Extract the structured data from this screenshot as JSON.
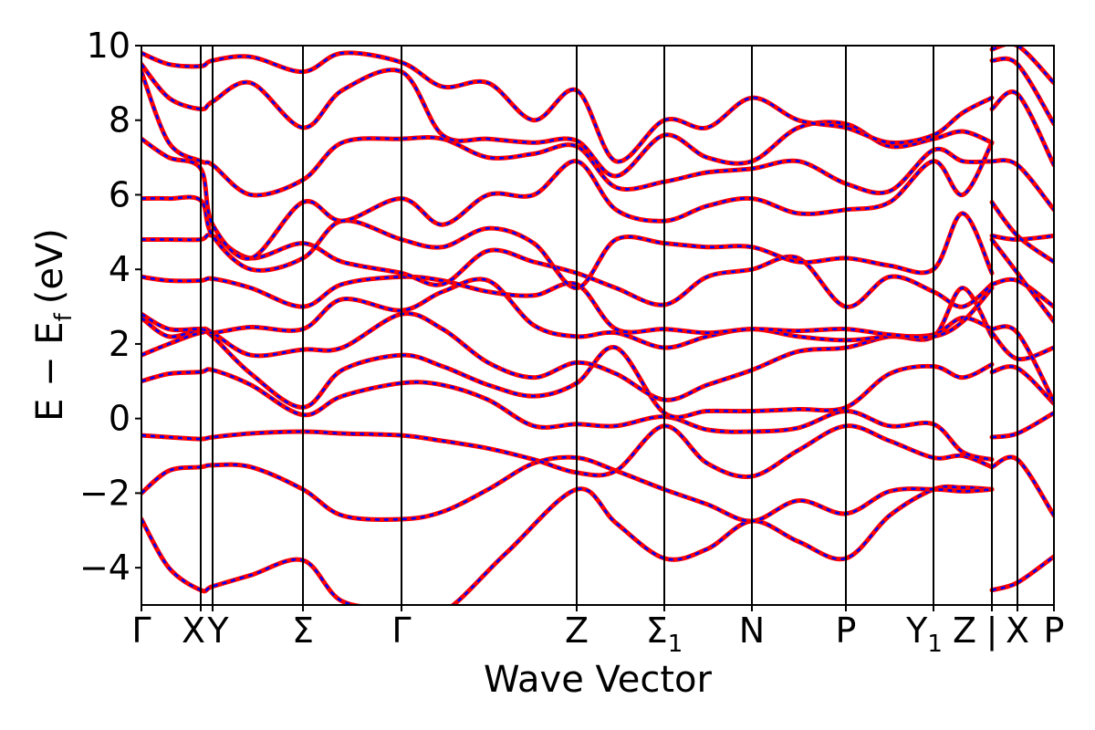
{
  "chart_data": {
    "type": "line",
    "xlabel": "Wave Vector",
    "ylabel": "E − E_f (eV)",
    "ylabel_parts": {
      "main": "E − E",
      "sub": "f",
      "unit": "(eV)"
    },
    "ylim": [
      -5,
      10
    ],
    "yticks": [
      -4,
      -2,
      0,
      2,
      4,
      6,
      8,
      10
    ],
    "xlim": [
      0,
      100
    ],
    "grid": false,
    "line_styles": {
      "red": "#ff0000",
      "blue_dashed": "#0000ff"
    },
    "kpoints": [
      {
        "label": "Γ",
        "pos": 0
      },
      {
        "label": "X",
        "pos": 6.5
      },
      {
        "label": "Y",
        "pos": 7.8
      },
      {
        "label": "Σ",
        "pos": 17.7
      },
      {
        "label": "Γ",
        "pos": 28.5
      },
      {
        "label": "Z",
        "pos": 47.7
      },
      {
        "label": "Σ",
        "sub": "1",
        "pos": 57.3
      },
      {
        "label": "N",
        "pos": 66.9
      },
      {
        "label": "P",
        "pos": 77.2
      },
      {
        "label": "Y",
        "sub": "1",
        "pos": 86.8
      },
      {
        "label": "Z",
        "pos": 93.2
      },
      {
        "label": "|",
        "pos": 93.2
      },
      {
        "label": "X",
        "pos": 96.0
      },
      {
        "label": "P",
        "pos": 100
      }
    ],
    "series": [
      {
        "x": [
          0,
          3,
          6.5,
          7.8,
          12,
          17.7,
          22,
          28.5,
          33,
          40,
          47.7,
          52,
          57.3,
          62,
          66.9,
          72,
          77.2,
          82,
          86.8,
          90,
          93.2
        ],
        "y": [
          -2.7,
          -4.0,
          -4.6,
          -4.5,
          -4.2,
          -3.8,
          -4.9,
          -5.1,
          -5.2,
          -3.6,
          -1.9,
          -2.8,
          -3.75,
          -3.5,
          -2.75,
          -3.3,
          -3.75,
          -2.6,
          -1.9,
          -1.85,
          -1.9
        ]
      },
      {
        "x": [
          0,
          3,
          6.5,
          7.8,
          12,
          17.7,
          22,
          28.5,
          33,
          38,
          43,
          47.7,
          52,
          57.3,
          62,
          66.9,
          72,
          77.2,
          82,
          86.8,
          90,
          93.2
        ],
        "y": [
          -2.0,
          -1.4,
          -1.3,
          -1.25,
          -1.3,
          -1.9,
          -2.6,
          -2.7,
          -2.5,
          -1.9,
          -1.2,
          -1.05,
          -1.4,
          -1.9,
          -2.3,
          -2.75,
          -2.2,
          -2.55,
          -1.95,
          -1.9,
          -1.95,
          -1.9
        ]
      },
      {
        "x": [
          0,
          3,
          6.5,
          7.8,
          12,
          17.7,
          22,
          28.5,
          33,
          38,
          43,
          47.7,
          52,
          57.3,
          62,
          66.9,
          72,
          77.2,
          82,
          86.8,
          90,
          93.2
        ],
        "y": [
          -0.45,
          -0.5,
          -0.55,
          -0.5,
          -0.4,
          -0.35,
          -0.4,
          -0.45,
          -0.6,
          -0.8,
          -1.1,
          -1.45,
          -1.4,
          -0.2,
          -1.2,
          -1.55,
          -0.85,
          -0.2,
          -0.6,
          -1.05,
          -1.0,
          -1.3
        ]
      },
      {
        "x": [
          0,
          3,
          6.5,
          7.8,
          12,
          17.7,
          22,
          28.5,
          33,
          38,
          43,
          47.7,
          52,
          57.3,
          62,
          66.9,
          72,
          77.2,
          82,
          86.8,
          90,
          93.2
        ],
        "y": [
          1.0,
          1.2,
          1.25,
          1.3,
          0.9,
          0.1,
          0.6,
          0.95,
          0.9,
          0.5,
          -0.2,
          -0.15,
          -0.2,
          0.05,
          -0.3,
          -0.35,
          -0.25,
          0.2,
          -0.2,
          -0.15,
          -0.9,
          -1.1
        ]
      },
      {
        "x": [
          0,
          3,
          6.5,
          7.8,
          12,
          17.7,
          22,
          28.5,
          33,
          38,
          43,
          47.7,
          52,
          57.3,
          62,
          66.9,
          72,
          77.2,
          82,
          86.8,
          90,
          93.2
        ],
        "y": [
          1.7,
          2.0,
          2.3,
          2.2,
          1.2,
          0.3,
          1.3,
          1.7,
          1.4,
          0.9,
          0.6,
          0.95,
          1.9,
          0.15,
          0.2,
          0.2,
          0.25,
          0.3,
          1.2,
          1.4,
          1.1,
          1.45
        ]
      },
      {
        "x": [
          0,
          3,
          6.5,
          7.8,
          12,
          17.7,
          22,
          28.5,
          33,
          38,
          43,
          47.7,
          52,
          57.3,
          62,
          66.9,
          72,
          77.2,
          82,
          86.8,
          90,
          93.2
        ],
        "y": [
          2.7,
          2.2,
          2.4,
          2.3,
          1.7,
          1.85,
          1.9,
          2.8,
          2.4,
          1.5,
          1.1,
          1.5,
          1.2,
          0.5,
          0.9,
          1.3,
          1.8,
          1.9,
          2.2,
          2.2,
          3.5,
          2.2
        ]
      },
      {
        "x": [
          0,
          3,
          6.5,
          7.8,
          12,
          17.7,
          22,
          28.5,
          33,
          38,
          43,
          47.7,
          52,
          57.3,
          62,
          66.9,
          72,
          77.2,
          82,
          86.8,
          90,
          93.2
        ],
        "y": [
          2.8,
          2.4,
          2.4,
          2.3,
          2.45,
          2.4,
          3.2,
          2.9,
          3.4,
          3.7,
          2.5,
          2.2,
          2.3,
          1.9,
          2.2,
          2.4,
          2.2,
          2.1,
          2.2,
          2.25,
          2.7,
          2.4
        ]
      },
      {
        "x": [
          0,
          3,
          6.5,
          7.8,
          12,
          17.7,
          22,
          28.5,
          33,
          38,
          43,
          47.7,
          52,
          57.3,
          62,
          66.9,
          72,
          77.2,
          82,
          86.8,
          90,
          93.2
        ],
        "y": [
          3.8,
          3.7,
          3.7,
          3.75,
          3.5,
          3.0,
          3.6,
          3.8,
          3.7,
          3.4,
          3.3,
          3.6,
          2.4,
          2.4,
          2.3,
          2.4,
          2.35,
          2.4,
          2.25,
          2.2,
          2.6,
          3.5
        ]
      },
      {
        "x": [
          0,
          3,
          6.5,
          7.8,
          12,
          17.7,
          22,
          28.5,
          33,
          38,
          43,
          47.7,
          52,
          57.3,
          62,
          66.9,
          72,
          77.2,
          82,
          86.8,
          90,
          93.2
        ],
        "y": [
          4.8,
          4.8,
          4.8,
          4.9,
          4.3,
          4.7,
          4.2,
          3.9,
          3.6,
          4.5,
          4.2,
          3.9,
          3.5,
          3.05,
          3.8,
          4.0,
          4.3,
          3.0,
          3.8,
          3.4,
          3.0,
          3.6
        ]
      },
      {
        "x": [
          0,
          3,
          6.5,
          7.8,
          12,
          17.7,
          22,
          28.5,
          33,
          38,
          43,
          47.7,
          52,
          57.3,
          62,
          66.9,
          72,
          77.2,
          82,
          86.8,
          90,
          93.2
        ],
        "y": [
          5.9,
          5.9,
          5.85,
          4.9,
          4.0,
          4.3,
          5.3,
          4.8,
          4.6,
          5.1,
          4.7,
          3.5,
          4.8,
          4.7,
          4.6,
          4.6,
          4.2,
          4.3,
          4.1,
          4.0,
          5.5,
          3.9
        ]
      },
      {
        "x": [
          0,
          3,
          6.5,
          7.8,
          12,
          17.7,
          22,
          28.5,
          33,
          38,
          43,
          47.7,
          52,
          57.3,
          62,
          66.9,
          72,
          77.2,
          82,
          86.8,
          90,
          93.2
        ],
        "y": [
          7.5,
          7.0,
          6.7,
          5.2,
          4.3,
          5.8,
          5.3,
          5.9,
          5.2,
          6.0,
          6.0,
          6.9,
          5.6,
          5.3,
          5.7,
          5.9,
          5.5,
          5.6,
          5.8,
          6.9,
          6.0,
          7.4
        ]
      },
      {
        "x": [
          0,
          3,
          6.5,
          7.8,
          12,
          17.7,
          22,
          28.5,
          33,
          38,
          43,
          47.7,
          52,
          57.3,
          62,
          66.9,
          72,
          77.2,
          82,
          86.8,
          90,
          93.2
        ],
        "y": [
          9.3,
          7.4,
          6.9,
          6.8,
          6.0,
          6.4,
          7.4,
          7.5,
          7.5,
          7.0,
          7.1,
          7.3,
          6.2,
          6.35,
          6.6,
          6.7,
          6.9,
          6.3,
          6.1,
          7.2,
          6.9,
          6.9
        ]
      },
      {
        "x": [
          0,
          3,
          6.5,
          7.8,
          12,
          17.7,
          22,
          28.5,
          33,
          38,
          43,
          47.7,
          52,
          57.3,
          62,
          66.9,
          72,
          77.2,
          82,
          86.8,
          90,
          93.2
        ],
        "y": [
          9.5,
          8.6,
          8.3,
          8.5,
          9.0,
          7.8,
          8.8,
          9.3,
          7.6,
          7.5,
          7.4,
          7.45,
          6.5,
          7.6,
          7.0,
          6.9,
          7.8,
          7.9,
          7.3,
          7.5,
          7.7,
          7.4
        ]
      },
      {
        "x": [
          0,
          3,
          6.5,
          7.8,
          12,
          17.7,
          22,
          28.5,
          33,
          38,
          43,
          47.7,
          52,
          57.3,
          62,
          66.9,
          72,
          77.2,
          82,
          86.8,
          90,
          93.2
        ],
        "y": [
          9.8,
          9.5,
          9.45,
          9.6,
          9.7,
          9.3,
          9.8,
          9.55,
          8.9,
          9.0,
          8.0,
          8.8,
          6.9,
          8.0,
          7.8,
          8.6,
          8.0,
          7.8,
          7.4,
          7.6,
          8.2,
          8.6
        ]
      },
      {
        "x": [
          93.2,
          96.0,
          100
        ],
        "y": [
          -4.6,
          -4.4,
          -3.7
        ]
      },
      {
        "x": [
          93.2,
          96.0,
          100
        ],
        "y": [
          -1.3,
          -1.1,
          -2.6
        ]
      },
      {
        "x": [
          93.2,
          96.0,
          100
        ],
        "y": [
          -0.5,
          -0.4,
          0.15
        ]
      },
      {
        "x": [
          93.2,
          96.0,
          100
        ],
        "y": [
          1.25,
          1.35,
          0.4
        ]
      },
      {
        "x": [
          93.2,
          96.0,
          100
        ],
        "y": [
          2.3,
          1.6,
          1.9
        ]
      },
      {
        "x": [
          93.2,
          96.0,
          100
        ],
        "y": [
          2.4,
          2.3,
          0.45
        ]
      },
      {
        "x": [
          93.2,
          96.0,
          100
        ],
        "y": [
          3.6,
          3.7,
          3.0
        ]
      },
      {
        "x": [
          93.2,
          96.0,
          100
        ],
        "y": [
          4.8,
          3.9,
          2.6
        ]
      },
      {
        "x": [
          93.2,
          96.0,
          100
        ],
        "y": [
          4.9,
          4.8,
          4.9
        ]
      },
      {
        "x": [
          93.2,
          96.0,
          100
        ],
        "y": [
          5.8,
          4.9,
          4.2
        ]
      },
      {
        "x": [
          93.2,
          96.0,
          100
        ],
        "y": [
          6.9,
          6.8,
          5.6
        ]
      },
      {
        "x": [
          93.2,
          96.0,
          100
        ],
        "y": [
          8.3,
          8.7,
          6.8
        ]
      },
      {
        "x": [
          93.2,
          96.0,
          100
        ],
        "y": [
          9.6,
          9.5,
          7.9
        ]
      },
      {
        "x": [
          93.2,
          96.0,
          100
        ],
        "y": [
          9.9,
          10.0,
          9.0
        ]
      }
    ]
  }
}
